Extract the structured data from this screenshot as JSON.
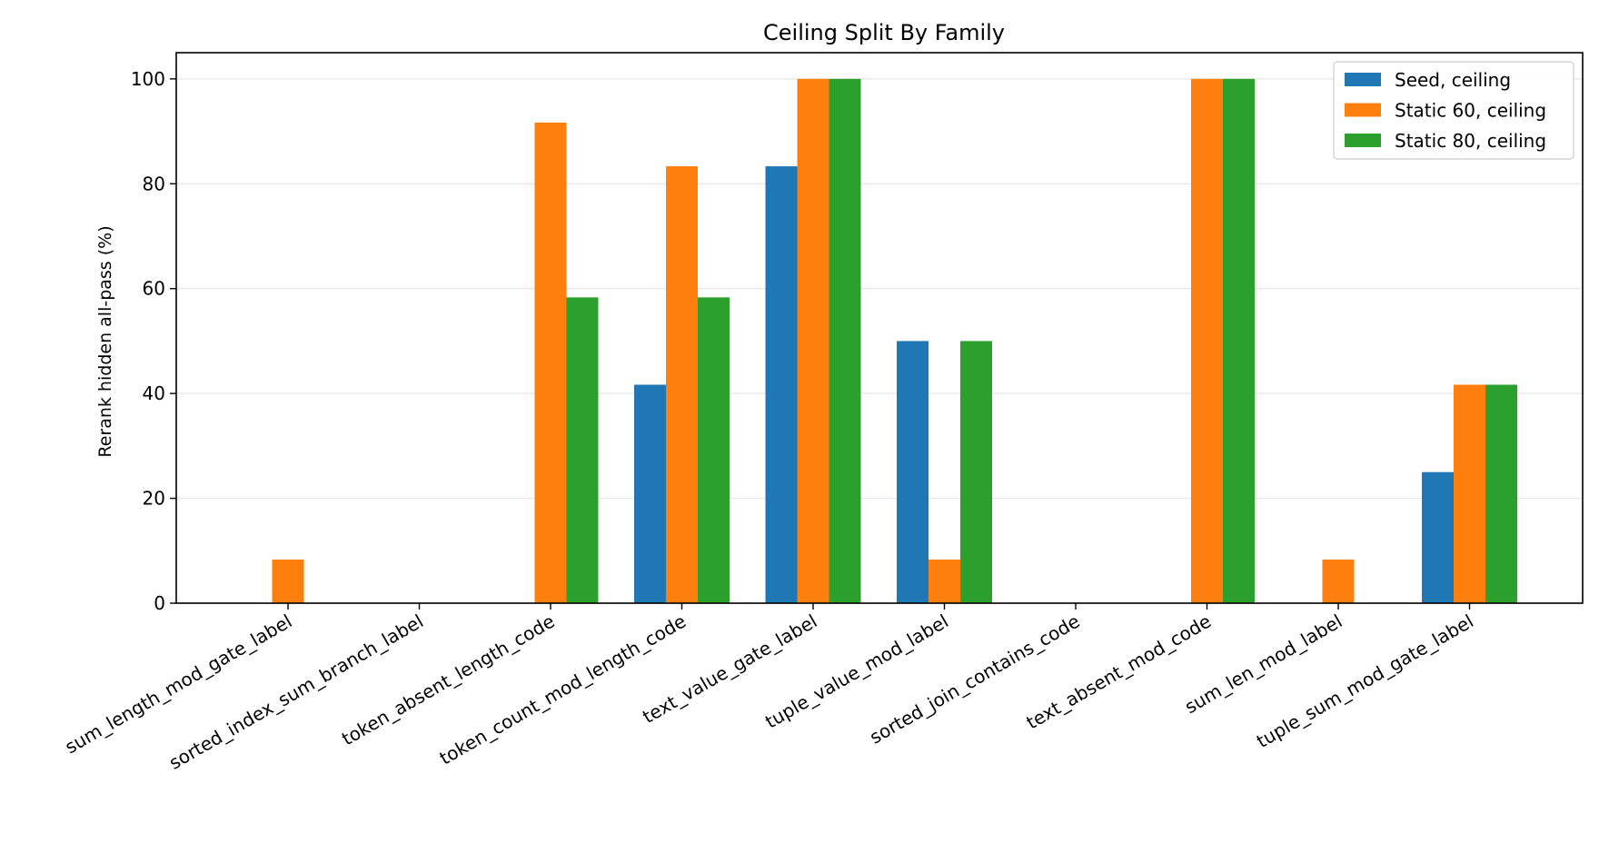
{
  "chart_data": {
    "type": "bar",
    "title": "Ceiling Split By Family",
    "xlabel": "",
    "ylabel": "Rerank hidden all-pass (%)",
    "ylim": [
      0,
      105
    ],
    "yticks": [
      "0",
      "20",
      "40",
      "60",
      "80",
      "100"
    ],
    "grid": "horizontal",
    "legend_position": "top-right",
    "categories": [
      "sum_length_mod_gate_label",
      "sorted_index_sum_branch_label",
      "token_absent_length_code",
      "token_count_mod_length_code",
      "text_value_gate_label",
      "tuple_value_mod_label",
      "sorted_join_contains_code",
      "text_absent_mod_code",
      "sum_len_mod_label",
      "tuple_sum_mod_gate_label"
    ],
    "series": [
      {
        "name": "Seed, ceiling",
        "color": "#1f77b4",
        "values": [
          0,
          0,
          0,
          41.67,
          83.33,
          50,
          0,
          0,
          0,
          25
        ]
      },
      {
        "name": "Static 60, ceiling",
        "color": "#ff7f0e",
        "values": [
          8.33,
          0,
          91.67,
          83.33,
          100,
          8.33,
          0,
          100,
          8.33,
          41.67
        ]
      },
      {
        "name": "Static 80, ceiling",
        "color": "#2ca02c",
        "values": [
          0,
          0,
          58.33,
          58.33,
          100,
          50,
          0,
          100,
          0,
          41.67
        ]
      }
    ]
  }
}
